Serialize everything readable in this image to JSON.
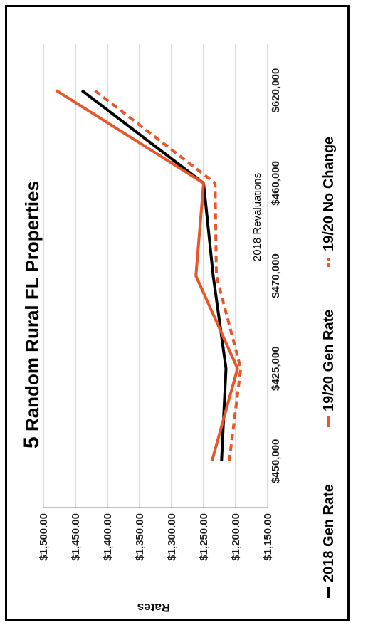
{
  "chart_data": {
    "type": "line",
    "title_prefix": "5",
    "title_rest": " Random Rural FL Properties",
    "categories": [
      "$450,000",
      "$425,000",
      "$470,000",
      "$460,000",
      "$620,000"
    ],
    "xlabel": "2018 Revaluations",
    "ylabel": "Rates",
    "ylim": [
      1150,
      1500
    ],
    "yticks": [
      "$1,150.00",
      "$1,200.00",
      "$1,250.00",
      "$1,300.00",
      "$1,350.00",
      "$1,400.00",
      "$1,450.00",
      "$1,500.00"
    ],
    "ytick_values": [
      1150,
      1200,
      1250,
      1300,
      1350,
      1400,
      1450,
      1500
    ],
    "grid": true,
    "series": [
      {
        "name": "2018 Gen Rate",
        "values": [
          1222,
          1215,
          1235,
          1250,
          1440
        ],
        "color": "#000000",
        "style": "solid"
      },
      {
        "name": "19/20 Gen Rate",
        "values": [
          1237,
          1197,
          1262,
          1250,
          1480
        ],
        "color": "#e8562a",
        "style": "solid"
      },
      {
        "name": "19/20 No Change",
        "values": [
          1210,
          1192,
          1230,
          1232,
          1420
        ],
        "color": "#e8562a",
        "style": "dashed"
      }
    ]
  }
}
